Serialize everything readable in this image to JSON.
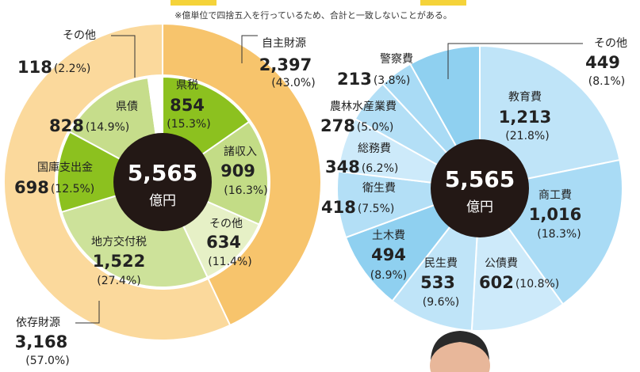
{
  "note": "※億単位で四捨五入を行っているため、合計と一致しないことがある。",
  "chart_data": [
    {
      "type": "donut",
      "total": 5565,
      "total_label": "5,565",
      "unit": "億円",
      "rings": [
        {
          "categories": [
            "自主財源",
            "依存財源"
          ],
          "values": [
            2397,
            3168
          ],
          "value_labels": [
            "2,397",
            "3,168"
          ],
          "shares": [
            43.0,
            57.0
          ],
          "share_labels": [
            "(43.0%)",
            "(57.0%)"
          ],
          "colors": [
            "#f7c46c",
            "#fbd99c"
          ]
        },
        {
          "categories": [
            "県税",
            "諸収入",
            "その他",
            "地方交付税",
            "国庫支出金",
            "県債",
            "その他"
          ],
          "values": [
            854,
            909,
            634,
            1522,
            698,
            828,
            118
          ],
          "value_labels": [
            "854",
            "909",
            "634",
            "1,522",
            "698",
            "828",
            "118"
          ],
          "shares": [
            15.3,
            16.3,
            11.4,
            27.4,
            12.5,
            14.9,
            2.2
          ],
          "share_labels": [
            "(15.3%)",
            "(16.3%)",
            "(11.4%)",
            "(27.4%)",
            "(12.5%)",
            "(14.9%)",
            "(2.2%)"
          ],
          "colors": [
            "#8cc11f",
            "#c3dc86",
            "#e6f0c6",
            "#cde29a",
            "#8cc11f",
            "#c6dd8b",
            "#ffffff"
          ]
        }
      ]
    },
    {
      "type": "pie",
      "total": 5565,
      "total_label": "5,565",
      "unit": "億円",
      "categories": [
        "教育費",
        "商工費",
        "公債費",
        "民生費",
        "土木費",
        "衛生費",
        "総務費",
        "農林水産業費",
        "警察費",
        "その他"
      ],
      "values": [
        1213,
        1016,
        602,
        533,
        494,
        418,
        348,
        278,
        213,
        449
      ],
      "value_labels": [
        "1,213",
        "1,016",
        "602",
        "533",
        "494",
        "418",
        "348",
        "278",
        "213",
        "449"
      ],
      "shares": [
        21.8,
        18.3,
        10.8,
        9.6,
        8.9,
        7.5,
        6.2,
        5.0,
        3.8,
        8.1
      ],
      "share_labels": [
        "(21.8%)",
        "(18.3%)",
        "(10.8%)",
        "(9.6%)",
        "(8.9%)",
        "(7.5%)",
        "(6.2%)",
        "(5.0%)",
        "(3.8%)",
        "(8.1%)"
      ],
      "colors": [
        "#bfe4f8",
        "#a9dbf5",
        "#cdeafa",
        "#bfe4f8",
        "#8fd0f0",
        "#b3dff6",
        "#cdeafa",
        "#b3dff6",
        "#a9dbf5",
        "#8fd0f0"
      ]
    }
  ]
}
